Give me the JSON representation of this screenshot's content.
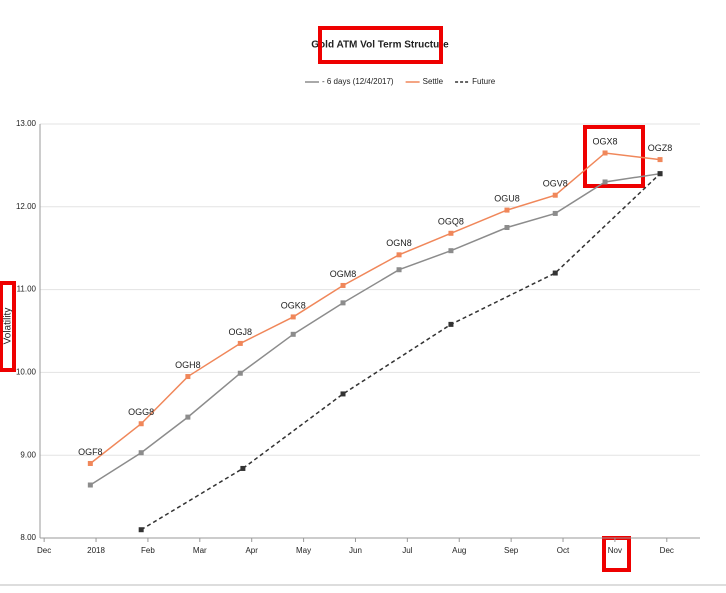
{
  "chart_data": {
    "type": "line",
    "title": "Gold ATM Vol Term Structure",
    "y_label": "Volatility",
    "xlim": [
      -0.08,
      12.64
    ],
    "xticks": [
      {
        "value": 0,
        "label": "Dec"
      },
      {
        "value": 1,
        "label": "2018"
      },
      {
        "value": 2,
        "label": "Feb"
      },
      {
        "value": 3,
        "label": "Mar"
      },
      {
        "value": 4,
        "label": "Apr"
      },
      {
        "value": 5,
        "label": "May"
      },
      {
        "value": 6,
        "label": "Jun"
      },
      {
        "value": 7,
        "label": "Jul"
      },
      {
        "value": 8,
        "label": "Aug"
      },
      {
        "value": 9,
        "label": "Sep"
      },
      {
        "value": 10,
        "label": "Oct"
      },
      {
        "value": 11,
        "label": "Nov"
      },
      {
        "value": 12,
        "label": "Dec"
      }
    ],
    "ylim": [
      8,
      13
    ],
    "yticks": [
      {
        "value": 8,
        "label": "8.00"
      },
      {
        "value": 9,
        "label": "9.00"
      },
      {
        "value": 10,
        "label": "10.00"
      },
      {
        "value": 11,
        "label": "11.00"
      },
      {
        "value": 12,
        "label": "12.00"
      },
      {
        "value": 13,
        "label": "13.00"
      }
    ],
    "grid": true,
    "series": [
      {
        "name": "- 6 days (12/4/2017)",
        "color": "#8c8c8c",
        "dash": false,
        "x": [
          0.89,
          1.87,
          2.77,
          3.78,
          4.8,
          5.76,
          6.84,
          7.84,
          8.92,
          9.85,
          10.81,
          11.87
        ],
        "values": [
          8.64,
          9.03,
          9.46,
          9.99,
          10.46,
          10.84,
          11.24,
          11.47,
          11.75,
          11.92,
          12.3,
          12.4
        ]
      },
      {
        "name": "Settle",
        "color": "#f0875a",
        "dash": false,
        "x": [
          0.89,
          1.87,
          2.77,
          3.78,
          4.8,
          5.76,
          6.84,
          7.84,
          8.92,
          9.85,
          10.81,
          11.87
        ],
        "values": [
          8.9,
          9.38,
          9.95,
          10.35,
          10.67,
          11.05,
          11.42,
          11.68,
          11.96,
          12.14,
          12.65,
          12.57
        ],
        "point_labels": [
          "OGF8",
          "OGG8",
          "OGH8",
          "OGJ8",
          "OGK8",
          "OGM8",
          "OGN8",
          "OGQ8",
          "OGU8",
          "OGV8",
          "OGX8",
          "OGZ8"
        ]
      },
      {
        "name": "Future",
        "color": "#333333",
        "dash": true,
        "x": [
          1.87,
          3.83,
          5.76,
          7.84,
          9.85,
          11.87
        ],
        "values": [
          8.1,
          8.84,
          9.74,
          10.58,
          11.2,
          12.4
        ]
      }
    ]
  }
}
